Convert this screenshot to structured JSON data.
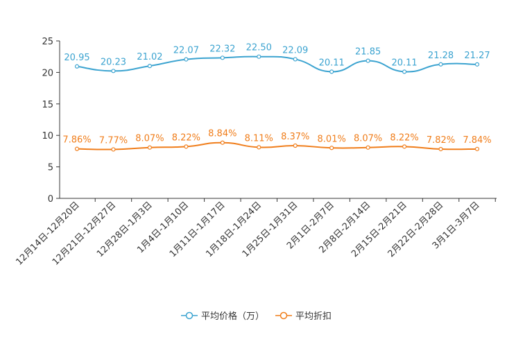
{
  "chart_data": {
    "type": "line",
    "categories": [
      "12月14日-12月20日",
      "12月21日-12月27日",
      "12月28日-1月3日",
      "1月4日-1月10日",
      "1月11日-1月17日",
      "1月18日-1月24日",
      "1月25日-1月31日",
      "2月1日-2月7日",
      "2月8日-2月14日",
      "2月15日-2月21日",
      "2月22日-2月28日",
      "3月1日-3月7日"
    ],
    "ylim": [
      0,
      25
    ],
    "yticks": [
      0,
      5,
      10,
      15,
      20,
      25
    ],
    "series": [
      {
        "name": "平均价格（万）",
        "color": "#3ba3d0",
        "values": [
          20.95,
          20.23,
          21.02,
          22.07,
          22.32,
          22.5,
          22.09,
          20.11,
          21.85,
          20.11,
          21.28,
          21.27
        ],
        "labels": [
          "20.95",
          "20.23",
          "21.02",
          "22.07",
          "22.32",
          "22.50",
          "22.09",
          "20.11",
          "21.85",
          "20.11",
          "21.28",
          "21.27"
        ]
      },
      {
        "name": "平均折扣",
        "color": "#f07d1a",
        "values": [
          7.86,
          7.77,
          8.07,
          8.22,
          8.84,
          8.11,
          8.37,
          8.01,
          8.07,
          8.22,
          7.82,
          7.84
        ],
        "labels": [
          "7.86%",
          "7.77%",
          "8.07%",
          "8.22%",
          "8.84%",
          "8.11%",
          "8.37%",
          "8.01%",
          "8.07%",
          "8.22%",
          "7.82%",
          "7.84%"
        ]
      }
    ]
  }
}
